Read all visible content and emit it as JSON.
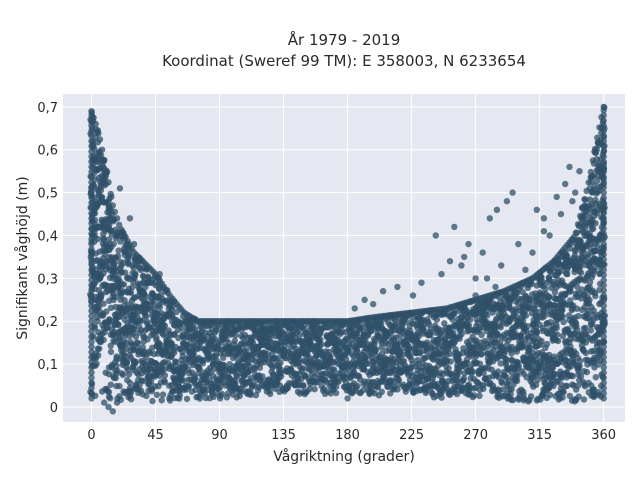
{
  "chart_data": {
    "type": "scatter",
    "title": [
      "År 1979 - 2019",
      "Koordinat (Sweref 99 TM): E 358003, N 6233654"
    ],
    "xlabel": "Vågriktning (grader)",
    "ylabel": "Signifikant våghöjd (m)",
    "xlim": [
      -20,
      375
    ],
    "ylim": [
      -0.035,
      0.73
    ],
    "xticks": [
      0,
      45,
      90,
      135,
      180,
      225,
      270,
      315,
      360
    ],
    "xtick_labels": [
      "0",
      "45",
      "90",
      "135",
      "180",
      "225",
      "270",
      "315",
      "360"
    ],
    "yticks": [
      0,
      0.1,
      0.2,
      0.3,
      0.4,
      0.5,
      0.6,
      0.7
    ],
    "ytick_labels": [
      "0",
      "0,1",
      "0,2",
      "0,3",
      "0,4",
      "0,5",
      "0,6",
      "0,7"
    ],
    "grid": true,
    "marker_color": "#2f5068",
    "plot_background": "#e5e8f0",
    "upper_envelope": [
      [
        0,
        0.69
      ],
      [
        5,
        0.64
      ],
      [
        10,
        0.56
      ],
      [
        15,
        0.47
      ],
      [
        20,
        0.42
      ],
      [
        30,
        0.36
      ],
      [
        45,
        0.31
      ],
      [
        55,
        0.26
      ],
      [
        65,
        0.22
      ],
      [
        75,
        0.2
      ],
      [
        100,
        0.2
      ],
      [
        135,
        0.2
      ],
      [
        180,
        0.2
      ],
      [
        200,
        0.21
      ],
      [
        225,
        0.22
      ],
      [
        250,
        0.23
      ],
      [
        270,
        0.25
      ],
      [
        290,
        0.27
      ],
      [
        310,
        0.3
      ],
      [
        325,
        0.34
      ],
      [
        340,
        0.4
      ],
      [
        350,
        0.53
      ],
      [
        355,
        0.62
      ],
      [
        360,
        0.7
      ]
    ],
    "lower_envelope": [
      [
        0,
        0.01
      ],
      [
        45,
        0.01
      ],
      [
        90,
        0.02
      ],
      [
        135,
        0.03
      ],
      [
        180,
        0.03
      ],
      [
        225,
        0.02
      ],
      [
        270,
        0.02
      ],
      [
        315,
        0.01
      ],
      [
        360,
        0.01
      ]
    ],
    "outliers": [
      [
        20,
        0.51
      ],
      [
        27,
        0.44
      ],
      [
        23,
        0.4
      ],
      [
        48,
        0.31
      ],
      [
        30,
        0.38
      ],
      [
        242,
        0.4
      ],
      [
        255,
        0.42
      ],
      [
        265,
        0.38
      ],
      [
        270,
        0.3
      ],
      [
        280,
        0.44
      ],
      [
        285,
        0.46
      ],
      [
        292,
        0.48
      ],
      [
        300,
        0.38
      ],
      [
        305,
        0.32
      ],
      [
        310,
        0.36
      ],
      [
        318,
        0.41
      ],
      [
        322,
        0.4
      ],
      [
        327,
        0.49
      ],
      [
        330,
        0.45
      ],
      [
        333,
        0.52
      ],
      [
        336,
        0.56
      ],
      [
        338,
        0.48
      ],
      [
        340,
        0.5
      ],
      [
        343,
        0.55
      ],
      [
        318,
        0.44
      ],
      [
        313,
        0.46
      ],
      [
        296,
        0.5
      ],
      [
        288,
        0.33
      ],
      [
        275,
        0.36
      ],
      [
        260,
        0.33
      ],
      [
        192,
        0.25
      ],
      [
        205,
        0.27
      ],
      [
        215,
        0.28
      ],
      [
        226,
        0.26
      ],
      [
        185,
        0.23
      ],
      [
        198,
        0.24
      ],
      [
        232,
        0.29
      ],
      [
        246,
        0.31
      ],
      [
        252,
        0.34
      ],
      [
        262,
        0.35
      ],
      [
        270,
        0.26
      ],
      [
        278,
        0.3
      ],
      [
        284,
        0.28
      ],
      [
        120,
        0.05
      ],
      [
        150,
        0.03
      ],
      [
        170,
        0.04
      ],
      [
        180,
        0.02
      ],
      [
        245,
        0.03
      ],
      [
        300,
        0.02
      ],
      [
        85,
        0.03
      ],
      [
        65,
        0.04
      ],
      [
        15,
        -0.01
      ],
      [
        12,
        0.0
      ]
    ]
  }
}
